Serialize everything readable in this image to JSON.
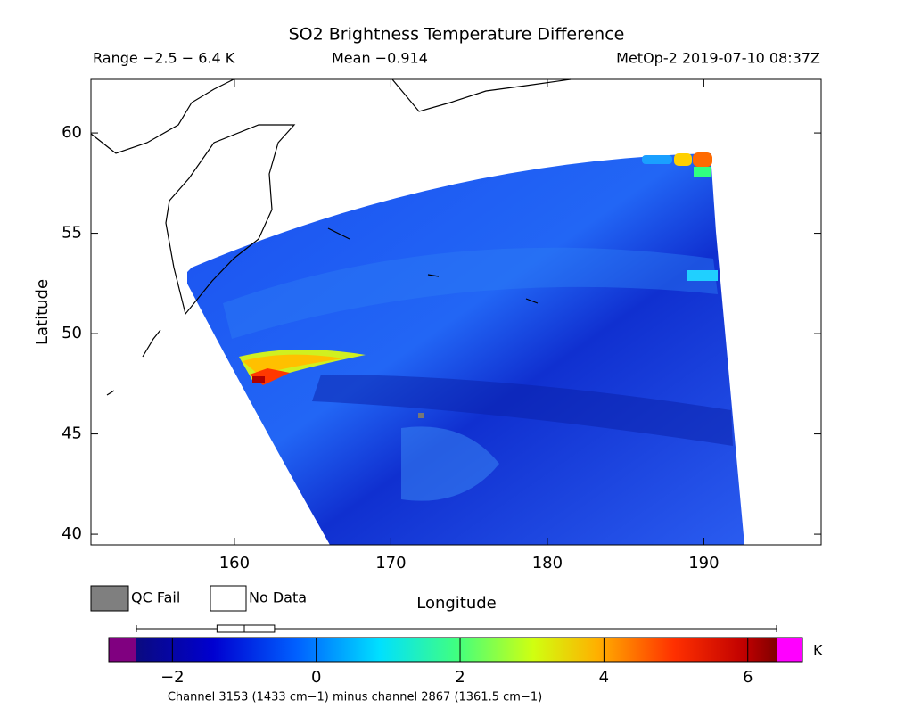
{
  "title": "SO2 Brightness Temperature Difference",
  "range_label": "Range −2.5 − 6.4 K",
  "mean_label": "Mean −0.914",
  "source_label": "MetOp-2 2019-07-10 08:37Z",
  "map": {
    "xlabel": "Longitude",
    "ylabel": "Latitude",
    "xlim": [
      150.83,
      197.5
    ],
    "ylim": [
      39.47,
      62.67
    ],
    "xticks": [
      160,
      170,
      180,
      190
    ],
    "yticks": [
      40,
      45,
      50,
      55,
      60
    ]
  },
  "legend": {
    "qc_fail": "QC Fail",
    "no_data": "No Data"
  },
  "colorbar": {
    "lim": [
      -2.5,
      6.4
    ],
    "ticks": [
      {
        "value": -2,
        "label": "−2"
      },
      0,
      2,
      4,
      6
    ],
    "unit": "K",
    "caption": "Channel 3153 (1433 cm−1) minus channel 2867 (1361.5 cm−1)",
    "box": {
      "min": -2.5,
      "q1": -1.38,
      "median": -1.0,
      "q3": -0.58,
      "max": 6.4
    }
  }
}
